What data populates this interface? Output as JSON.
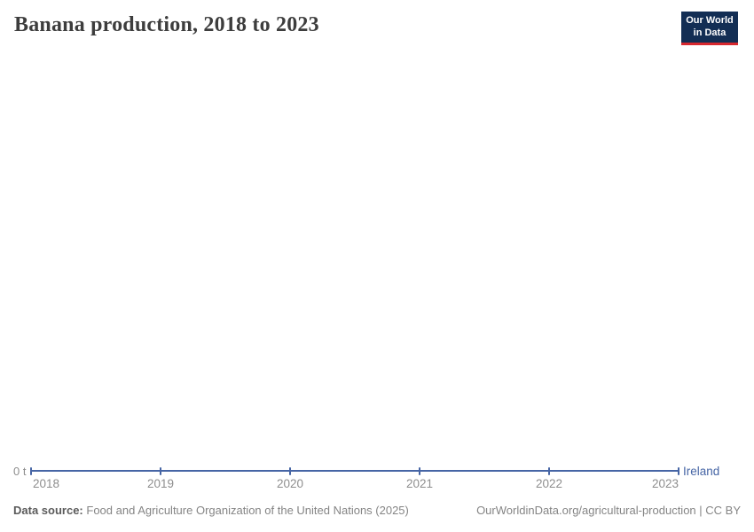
{
  "header": {
    "title": "Banana production, 2018 to 2023",
    "logo": {
      "line1": "Our World",
      "line2": "in Data"
    }
  },
  "chart_data": {
    "type": "line",
    "title": "Banana production, 2018 to 2023",
    "x": [
      2018,
      2019,
      2020,
      2021,
      2022,
      2023
    ],
    "x_tick_labels": [
      "2018",
      "2019",
      "2020",
      "2021",
      "2022",
      "2023"
    ],
    "series": [
      {
        "name": "Ireland",
        "unit": "t",
        "values": [
          0,
          0,
          0,
          0,
          0,
          0
        ]
      }
    ],
    "y_axis": {
      "tick_labels": [
        "0 t"
      ],
      "min": 0
    },
    "grid": false,
    "legend_position": "end-of-line",
    "point_markers": true
  },
  "footer": {
    "source_label": "Data source:",
    "source_text": "Food and Agriculture Organization of the United Nations (2025)",
    "link_text": "OurWorldinData.org/agricultural-production | CC BY"
  },
  "colors": {
    "line": "#4665a5",
    "entity_label": "#4665a5",
    "axis_text": "#8e8e8e",
    "title": "#3d3d3d",
    "logo_bg": "#132e54",
    "logo_red": "#d7282f"
  }
}
